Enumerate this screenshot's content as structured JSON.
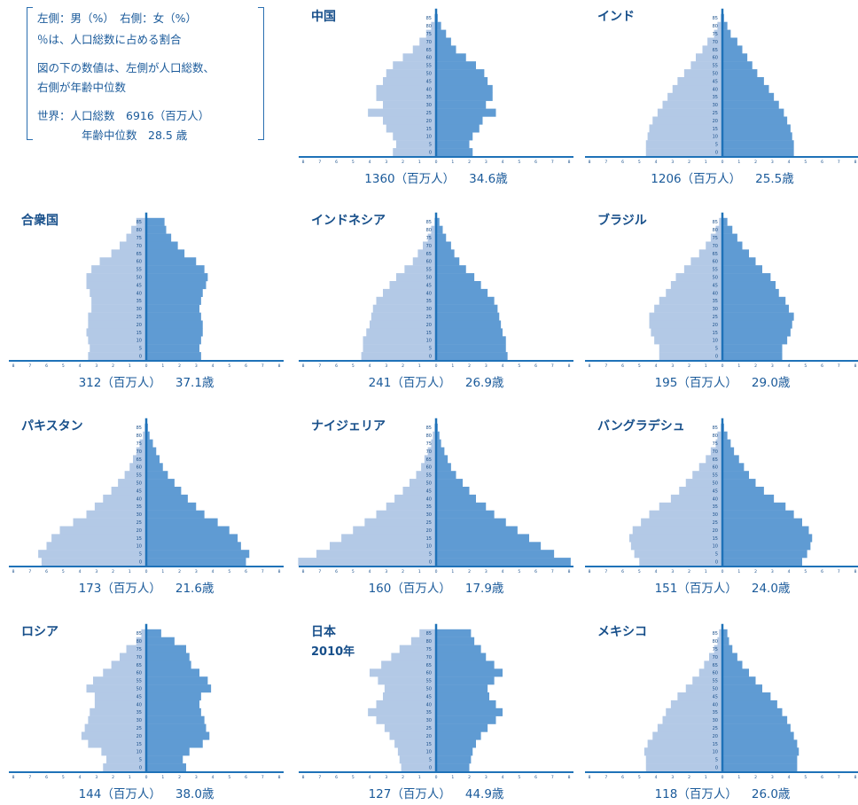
{
  "legend": {
    "line1": "左側：男（%）　右側：女（%）",
    "line2": "％は、人口総数に占める割合",
    "line3": "図の下の数値は、左側が人口総数、",
    "line4": "右側が年齢中位数",
    "line5": "世界：人口総数　6916（百万人）",
    "line6": "年齢中位数　28.5 歳"
  },
  "colors": {
    "male": "#b3c9e6",
    "female": "#5f9bd3",
    "axis": "#1f72b8",
    "text": "#174f8a"
  },
  "chart_data": [
    {
      "type": "bar",
      "title": "中国",
      "population": "1360（百万人）",
      "median_age": "34.6歳",
      "age_groups": [
        "0",
        "5",
        "10",
        "15",
        "20",
        "25",
        "30",
        "35",
        "40",
        "45",
        "50",
        "55",
        "60",
        "65",
        "70",
        "75",
        "80",
        "85"
      ],
      "x_ticks": [
        "8",
        "7",
        "6",
        "5",
        "4",
        "3",
        "2",
        "1",
        "0",
        "1",
        "2",
        "3",
        "4",
        "5",
        "6",
        "7",
        "8"
      ],
      "xlim": [
        -8,
        8
      ],
      "male": [
        2.6,
        2.4,
        2.6,
        3.0,
        3.2,
        4.1,
        3.2,
        3.6,
        3.6,
        3.2,
        3.0,
        2.6,
        2.0,
        1.4,
        1.0,
        0.6,
        0.3,
        0.1
      ],
      "female": [
        2.2,
        2.0,
        2.2,
        2.6,
        2.8,
        3.6,
        3.0,
        3.4,
        3.4,
        3.1,
        2.9,
        2.4,
        1.8,
        1.2,
        0.9,
        0.6,
        0.3,
        0.1
      ]
    },
    {
      "type": "bar",
      "title": "インド",
      "population": "1206（百万人）",
      "median_age": "25.5歳",
      "age_groups": [
        "0",
        "5",
        "10",
        "15",
        "20",
        "25",
        "30",
        "35",
        "40",
        "45",
        "50",
        "55",
        "60",
        "65",
        "70",
        "75",
        "80",
        "85"
      ],
      "x_ticks": [
        "8",
        "7",
        "6",
        "5",
        "4",
        "3",
        "2",
        "1",
        "0",
        "1",
        "2",
        "3",
        "4",
        "5",
        "6",
        "7",
        "8"
      ],
      "xlim": [
        -8,
        8
      ],
      "male": [
        4.6,
        4.6,
        4.5,
        4.4,
        4.2,
        3.9,
        3.6,
        3.3,
        3.0,
        2.7,
        2.3,
        1.9,
        1.6,
        1.2,
        0.9,
        0.5,
        0.3,
        0.1
      ],
      "female": [
        4.3,
        4.3,
        4.2,
        4.1,
        3.9,
        3.7,
        3.4,
        3.1,
        2.8,
        2.5,
        2.1,
        1.8,
        1.5,
        1.2,
        0.9,
        0.5,
        0.3,
        0.1
      ]
    },
    {
      "type": "bar",
      "title": "合衆国",
      "population": "312（百万人）",
      "median_age": "37.1歳",
      "age_groups": [
        "0",
        "5",
        "10",
        "15",
        "20",
        "25",
        "30",
        "35",
        "40",
        "45",
        "50",
        "55",
        "60",
        "65",
        "70",
        "75",
        "80",
        "85"
      ],
      "x_ticks": [
        "8",
        "7",
        "6",
        "5",
        "4",
        "3",
        "2",
        "1",
        "0",
        "1",
        "2",
        "3",
        "4",
        "5",
        "6",
        "7",
        "8"
      ],
      "xlim": [
        -8,
        8
      ],
      "male": [
        3.5,
        3.4,
        3.5,
        3.6,
        3.5,
        3.5,
        3.3,
        3.3,
        3.4,
        3.6,
        3.6,
        3.3,
        2.8,
        2.1,
        1.6,
        1.2,
        0.9,
        0.6
      ],
      "female": [
        3.3,
        3.2,
        3.3,
        3.4,
        3.4,
        3.3,
        3.2,
        3.3,
        3.4,
        3.6,
        3.7,
        3.5,
        3.0,
        2.3,
        1.9,
        1.5,
        1.2,
        1.1
      ]
    },
    {
      "type": "bar",
      "title": "インドネシア",
      "population": "241（百万人）",
      "median_age": "26.9歳",
      "age_groups": [
        "0",
        "5",
        "10",
        "15",
        "20",
        "25",
        "30",
        "35",
        "40",
        "45",
        "50",
        "55",
        "60",
        "65",
        "70",
        "75",
        "80",
        "85"
      ],
      "x_ticks": [
        "8",
        "7",
        "6",
        "5",
        "4",
        "3",
        "2",
        "1",
        "0",
        "1",
        "2",
        "3",
        "4",
        "5",
        "6",
        "7",
        "8"
      ],
      "xlim": [
        -8,
        8
      ],
      "male": [
        4.5,
        4.4,
        4.4,
        4.2,
        4.0,
        3.9,
        3.8,
        3.6,
        3.2,
        2.8,
        2.4,
        1.9,
        1.4,
        1.1,
        0.8,
        0.5,
        0.3,
        0.1
      ],
      "female": [
        4.3,
        4.2,
        4.2,
        4.0,
        3.9,
        3.8,
        3.7,
        3.5,
        3.1,
        2.7,
        2.3,
        1.8,
        1.4,
        1.1,
        0.9,
        0.6,
        0.4,
        0.2
      ]
    },
    {
      "type": "bar",
      "title": "ブラジル",
      "population": "195（百万人）",
      "median_age": "29.0歳",
      "age_groups": [
        "0",
        "5",
        "10",
        "15",
        "20",
        "25",
        "30",
        "35",
        "40",
        "45",
        "50",
        "55",
        "60",
        "65",
        "70",
        "75",
        "80",
        "85"
      ],
      "x_ticks": [
        "8",
        "7",
        "6",
        "5",
        "4",
        "3",
        "2",
        "1",
        "0",
        "1",
        "2",
        "3",
        "4",
        "5",
        "6",
        "7",
        "8"
      ],
      "xlim": [
        -8,
        8
      ],
      "male": [
        3.8,
        3.8,
        4.1,
        4.3,
        4.4,
        4.4,
        4.1,
        3.8,
        3.4,
        3.1,
        2.8,
        2.3,
        1.9,
        1.4,
        1.0,
        0.7,
        0.4,
        0.2
      ],
      "female": [
        3.6,
        3.6,
        3.9,
        4.1,
        4.2,
        4.3,
        4.0,
        3.8,
        3.4,
        3.2,
        2.9,
        2.4,
        2.0,
        1.6,
        1.2,
        0.9,
        0.6,
        0.3
      ]
    },
    {
      "type": "bar",
      "title": "パキスタン",
      "population": "173（百万人）",
      "median_age": "21.6歳",
      "age_groups": [
        "0",
        "5",
        "10",
        "15",
        "20",
        "25",
        "30",
        "35",
        "40",
        "45",
        "50",
        "55",
        "60",
        "65",
        "70",
        "75",
        "80",
        "85"
      ],
      "x_ticks": [
        "8",
        "7",
        "6",
        "5",
        "4",
        "3",
        "2",
        "1",
        "0",
        "1",
        "2",
        "3",
        "4",
        "5",
        "6",
        "7",
        "8"
      ],
      "xlim": [
        -8,
        8
      ],
      "male": [
        6.3,
        6.5,
        6.0,
        5.7,
        5.2,
        4.4,
        3.6,
        3.1,
        2.6,
        2.1,
        1.7,
        1.3,
        1.0,
        0.8,
        0.6,
        0.4,
        0.2,
        0.1
      ],
      "female": [
        6.0,
        6.2,
        5.7,
        5.5,
        5.0,
        4.3,
        3.5,
        3.0,
        2.5,
        2.1,
        1.7,
        1.3,
        1.0,
        0.8,
        0.6,
        0.4,
        0.2,
        0.1
      ]
    },
    {
      "type": "bar",
      "title": "ナイジェリア",
      "population": "160（百万人）",
      "median_age": "17.9歳",
      "age_groups": [
        "0",
        "5",
        "10",
        "15",
        "20",
        "25",
        "30",
        "35",
        "40",
        "45",
        "50",
        "55",
        "60",
        "65",
        "70",
        "75",
        "80",
        "85"
      ],
      "x_ticks": [
        "8",
        "7",
        "6",
        "5",
        "4",
        "3",
        "2",
        "1",
        "0",
        "1",
        "2",
        "3",
        "4",
        "5",
        "6",
        "7",
        "8"
      ],
      "xlim": [
        -8,
        8
      ],
      "male": [
        8.3,
        7.2,
        6.4,
        5.7,
        5.0,
        4.3,
        3.6,
        3.0,
        2.5,
        2.0,
        1.6,
        1.2,
        0.9,
        0.7,
        0.5,
        0.3,
        0.2,
        0.1
      ],
      "female": [
        8.1,
        7.1,
        6.3,
        5.6,
        4.9,
        4.2,
        3.5,
        3.0,
        2.4,
        2.0,
        1.6,
        1.2,
        0.9,
        0.7,
        0.5,
        0.3,
        0.2,
        0.1
      ]
    },
    {
      "type": "bar",
      "title": "バングラデシュ",
      "population": "151（百万人）",
      "median_age": "24.0歳",
      "age_groups": [
        "0",
        "5",
        "10",
        "15",
        "20",
        "25",
        "30",
        "35",
        "40",
        "45",
        "50",
        "55",
        "60",
        "65",
        "70",
        "75",
        "80",
        "85"
      ],
      "x_ticks": [
        "8",
        "7",
        "6",
        "5",
        "4",
        "3",
        "2",
        "1",
        "0",
        "1",
        "2",
        "3",
        "4",
        "5",
        "6",
        "7",
        "8"
      ],
      "xlim": [
        -8,
        8
      ],
      "male": [
        5.0,
        5.3,
        5.5,
        5.6,
        5.4,
        4.9,
        4.4,
        3.8,
        3.1,
        2.6,
        2.2,
        1.8,
        1.4,
        1.0,
        0.7,
        0.4,
        0.3,
        0.1
      ],
      "female": [
        4.8,
        5.1,
        5.3,
        5.4,
        5.2,
        4.8,
        4.3,
        3.8,
        3.1,
        2.5,
        2.0,
        1.6,
        1.3,
        1.0,
        0.7,
        0.5,
        0.3,
        0.1
      ]
    },
    {
      "type": "bar",
      "title": "ロシア",
      "population": "144（百万人）",
      "median_age": "38.0歳",
      "age_groups": [
        "0",
        "5",
        "10",
        "15",
        "20",
        "25",
        "30",
        "35",
        "40",
        "45",
        "50",
        "55",
        "60",
        "65",
        "70",
        "75",
        "80",
        "85"
      ],
      "x_ticks": [
        "8",
        "7",
        "6",
        "5",
        "4",
        "3",
        "2",
        "1",
        "0",
        "1",
        "2",
        "3",
        "4",
        "5",
        "6",
        "7",
        "8"
      ],
      "xlim": [
        -8,
        8
      ],
      "male": [
        2.6,
        2.4,
        2.7,
        3.5,
        3.9,
        3.7,
        3.5,
        3.4,
        3.1,
        3.1,
        3.6,
        3.2,
        2.6,
        2.1,
        1.6,
        1.2,
        0.6,
        0.3
      ],
      "female": [
        2.4,
        2.2,
        2.6,
        3.4,
        3.8,
        3.6,
        3.5,
        3.3,
        3.2,
        3.3,
        3.9,
        3.7,
        3.2,
        2.7,
        2.6,
        2.4,
        1.7,
        0.9
      ]
    },
    {
      "type": "bar",
      "title": "日本",
      "subtitle": "2010年",
      "population": "127（百万人）",
      "median_age": "44.9歳",
      "age_groups": [
        "0",
        "5",
        "10",
        "15",
        "20",
        "25",
        "30",
        "35",
        "40",
        "45",
        "50",
        "55",
        "60",
        "65",
        "70",
        "75",
        "80",
        "85"
      ],
      "x_ticks": [
        "8",
        "7",
        "6",
        "5",
        "4",
        "3",
        "2",
        "1",
        "0",
        "1",
        "2",
        "3",
        "4",
        "5",
        "6",
        "7",
        "8"
      ],
      "xlim": [
        -8,
        8
      ],
      "male": [
        2.1,
        2.2,
        2.3,
        2.5,
        2.8,
        3.1,
        3.6,
        4.1,
        3.6,
        3.2,
        3.1,
        3.5,
        4.0,
        3.3,
        2.7,
        2.2,
        1.5,
        1.0
      ],
      "female": [
        2.0,
        2.1,
        2.2,
        2.4,
        2.7,
        3.1,
        3.6,
        4.0,
        3.6,
        3.2,
        3.1,
        3.5,
        4.0,
        3.5,
        3.0,
        2.7,
        2.3,
        2.1
      ]
    },
    {
      "type": "bar",
      "title": "メキシコ",
      "population": "118（百万人）",
      "median_age": "26.0歳",
      "age_groups": [
        "0",
        "5",
        "10",
        "15",
        "20",
        "25",
        "30",
        "35",
        "40",
        "45",
        "50",
        "55",
        "60",
        "65",
        "70",
        "75",
        "80",
        "85"
      ],
      "x_ticks": [
        "8",
        "7",
        "6",
        "5",
        "4",
        "3",
        "2",
        "1",
        "0",
        "1",
        "2",
        "3",
        "4",
        "5",
        "6",
        "7",
        "8"
      ],
      "xlim": [
        -8,
        8
      ],
      "male": [
        4.6,
        4.6,
        4.7,
        4.5,
        4.2,
        3.9,
        3.6,
        3.4,
        3.1,
        2.7,
        2.2,
        1.8,
        1.4,
        1.1,
        0.8,
        0.5,
        0.3,
        0.2
      ],
      "female": [
        4.5,
        4.5,
        4.6,
        4.5,
        4.3,
        4.1,
        3.9,
        3.6,
        3.3,
        2.9,
        2.4,
        2.0,
        1.6,
        1.2,
        0.9,
        0.6,
        0.4,
        0.3
      ]
    }
  ]
}
